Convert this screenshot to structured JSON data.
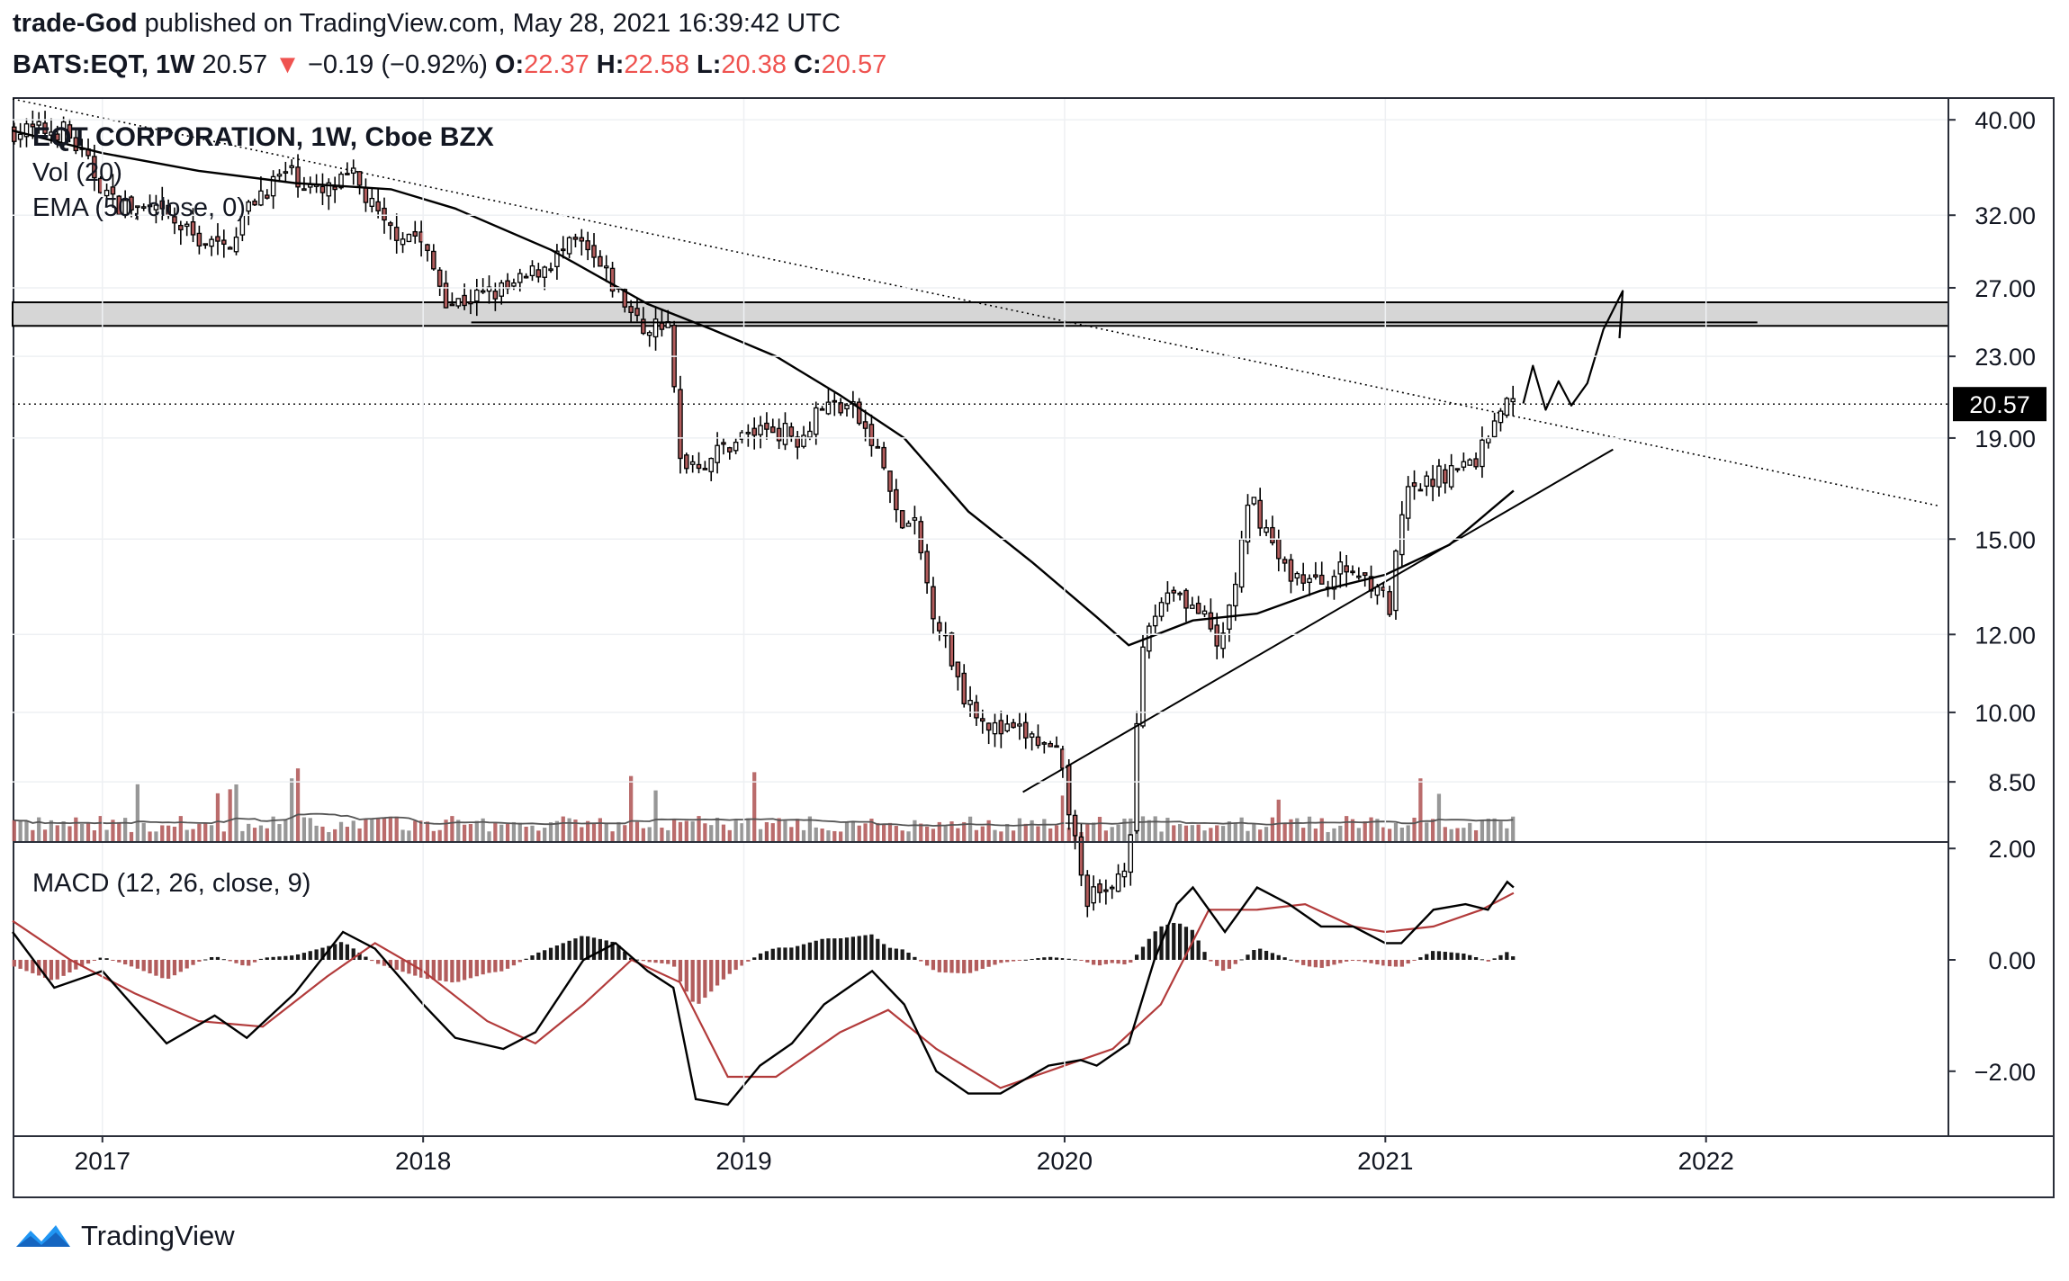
{
  "header": {
    "author": "trade-God",
    "published_text": "published on TradingView.com, May 28, 2021 16:39:42 UTC",
    "symbol": "BATS:EQT, 1W",
    "last": "20.57",
    "change_arrow": "▼",
    "change": "−0.19 (−0.92%)",
    "o_label": "O:",
    "o_value": "22.37",
    "h_label": "H:",
    "h_value": "22.58",
    "l_label": "L:",
    "l_value": "20.38",
    "c_label": "C:",
    "c_value": "20.57"
  },
  "legend": {
    "title": "EQT CORPORATION, 1W, Cboe BZX",
    "vol": "Vol (20)",
    "ema": "EMA (50, close, 0)",
    "macd": "MACD (12, 26, close, 9)"
  },
  "footer": {
    "brand": "TradingView",
    "logo_icon": "tradingview-logo-icon"
  },
  "colors": {
    "up": "#ffffff",
    "down": "#b25c5c",
    "macd_line": "#000000",
    "signal_line": "#b23b3b",
    "hist_pos": "#1a1a1a",
    "hist_neg": "#b25c5c",
    "price_tag_bg": "#000000",
    "header_down": "#ef5350"
  },
  "chart_data": [
    {
      "type": "candlestick",
      "title": "EQT CORPORATION, 1W, Cboe BZX",
      "y_scale": "log",
      "x_ticks": [
        "2017",
        "2018",
        "2019",
        "2020",
        "2021",
        "2022"
      ],
      "x_tick_dates": [
        2017.0,
        2018.0,
        2019.0,
        2020.0,
        2021.0,
        2022.0
      ],
      "x_range": [
        2016.72,
        2022.75
      ],
      "y_ticks": [
        "40.00",
        "32.00",
        "27.00",
        "23.00",
        "19.00",
        "15.00",
        "12.00",
        "10.00",
        "8.50"
      ],
      "y_tick_values": [
        40,
        32,
        27,
        23,
        19,
        15,
        12,
        10,
        8.5
      ],
      "y_range": [
        7.4,
        42
      ],
      "last_price_label": "20.57",
      "last_price": 20.57,
      "anchors": [
        [
          2016.72,
          39
        ],
        [
          2016.9,
          39
        ],
        [
          2017.05,
          33
        ],
        [
          2017.2,
          32
        ],
        [
          2017.3,
          30.5
        ],
        [
          2017.4,
          29.5
        ],
        [
          2017.5,
          33.5
        ],
        [
          2017.6,
          35.5
        ],
        [
          2017.7,
          33.5
        ],
        [
          2017.8,
          35
        ],
        [
          2017.9,
          31
        ],
        [
          2018.0,
          30.5
        ],
        [
          2018.1,
          26
        ],
        [
          2018.2,
          26.5
        ],
        [
          2018.3,
          27
        ],
        [
          2018.4,
          28.5
        ],
        [
          2018.5,
          30
        ],
        [
          2018.6,
          27.5
        ],
        [
          2018.7,
          24.5
        ],
        [
          2018.78,
          25
        ],
        [
          2018.82,
          18
        ],
        [
          2018.9,
          18
        ],
        [
          2019.0,
          19
        ],
        [
          2019.1,
          19.5
        ],
        [
          2019.2,
          19
        ],
        [
          2019.25,
          20.5
        ],
        [
          2019.35,
          20.5
        ],
        [
          2019.45,
          18
        ],
        [
          2019.5,
          15.5
        ],
        [
          2019.55,
          15.5
        ],
        [
          2019.6,
          13
        ],
        [
          2019.7,
          10.5
        ],
        [
          2019.8,
          9.6
        ],
        [
          2019.9,
          9.5
        ],
        [
          2020.0,
          9.0
        ],
        [
          2020.08,
          6.5
        ],
        [
          2020.15,
          6.5
        ],
        [
          2020.22,
          7.2
        ],
        [
          2020.27,
          12
        ],
        [
          2020.35,
          13.5
        ],
        [
          2020.45,
          12.5
        ],
        [
          2020.5,
          11.5
        ],
        [
          2020.55,
          13.5
        ],
        [
          2020.6,
          16.5
        ],
        [
          2020.7,
          14
        ],
        [
          2020.8,
          13.5
        ],
        [
          2020.9,
          14
        ],
        [
          2021.0,
          13.5
        ],
        [
          2021.03,
          12.5
        ],
        [
          2021.08,
          16.5
        ],
        [
          2021.2,
          17.5
        ],
        [
          2021.3,
          18
        ],
        [
          2021.38,
          20.5
        ],
        [
          2021.4,
          20.57
        ]
      ],
      "ema_anchors": [
        [
          2016.72,
          39
        ],
        [
          2017.0,
          37
        ],
        [
          2017.3,
          35.5
        ],
        [
          2017.6,
          34.5
        ],
        [
          2017.9,
          34
        ],
        [
          2018.1,
          32.5
        ],
        [
          2018.4,
          29.5
        ],
        [
          2018.7,
          26
        ],
        [
          2018.9,
          24.5
        ],
        [
          2019.1,
          23
        ],
        [
          2019.3,
          21
        ],
        [
          2019.5,
          19
        ],
        [
          2019.7,
          16
        ],
        [
          2019.9,
          14.2
        ],
        [
          2020.1,
          12.5
        ],
        [
          2020.2,
          11.7
        ],
        [
          2020.4,
          12.4
        ],
        [
          2020.6,
          12.6
        ],
        [
          2020.8,
          13.3
        ],
        [
          2021.0,
          13.8
        ],
        [
          2021.2,
          14.8
        ],
        [
          2021.4,
          16.8
        ]
      ],
      "resistance_zone": [
        24.7,
        26.1
      ],
      "trendlines": [
        {
          "style": "dotted",
          "points": [
            [
              2016.72,
              42
            ],
            [
              2022.73,
              16.2
            ]
          ]
        },
        {
          "style": "solid",
          "points": [
            [
              2019.87,
              8.3
            ],
            [
              2021.71,
              18.5
            ]
          ]
        },
        {
          "style": "solid",
          "points": [
            [
              2018.15,
              24.9
            ],
            [
              2022.16,
              24.9
            ]
          ]
        }
      ],
      "projection_path": [
        [
          2021.43,
          20.6
        ],
        [
          2021.46,
          22.5
        ],
        [
          2021.5,
          20.3
        ],
        [
          2021.54,
          21.7
        ],
        [
          2021.58,
          20.5
        ],
        [
          2021.63,
          21.6
        ],
        [
          2021.68,
          24.5
        ],
        [
          2021.74,
          26.8
        ],
        [
          2021.73,
          24.0
        ]
      ]
    },
    {
      "type": "bar",
      "title": "Vol (20)",
      "note": "weekly volume histogram with 20-period moving average"
    },
    {
      "type": "line",
      "title": "MACD (12, 26, close, 9)",
      "y_ticks": [
        "2.00",
        "0.00",
        "−2.00"
      ],
      "y_tick_values": [
        2,
        0,
        -2
      ],
      "y_range": [
        -3.15,
        2.1
      ],
      "macd_anchors": [
        [
          2016.72,
          0.5
        ],
        [
          2016.85,
          -0.5
        ],
        [
          2017.0,
          -0.2
        ],
        [
          2017.2,
          -1.5
        ],
        [
          2017.35,
          -1.0
        ],
        [
          2017.45,
          -1.4
        ],
        [
          2017.6,
          -0.6
        ],
        [
          2017.75,
          0.5
        ],
        [
          2017.85,
          0.2
        ],
        [
          2018.0,
          -0.8
        ],
        [
          2018.1,
          -1.4
        ],
        [
          2018.25,
          -1.6
        ],
        [
          2018.35,
          -1.3
        ],
        [
          2018.5,
          0.0
        ],
        [
          2018.6,
          0.3
        ],
        [
          2018.7,
          -0.2
        ],
        [
          2018.78,
          -0.5
        ],
        [
          2018.85,
          -2.5
        ],
        [
          2018.95,
          -2.6
        ],
        [
          2019.05,
          -1.9
        ],
        [
          2019.15,
          -1.5
        ],
        [
          2019.25,
          -0.8
        ],
        [
          2019.4,
          -0.2
        ],
        [
          2019.5,
          -0.8
        ],
        [
          2019.6,
          -2.0
        ],
        [
          2019.7,
          -2.4
        ],
        [
          2019.8,
          -2.4
        ],
        [
          2019.95,
          -1.9
        ],
        [
          2020.05,
          -1.8
        ],
        [
          2020.1,
          -1.9
        ],
        [
          2020.2,
          -1.5
        ],
        [
          2020.28,
          0.0
        ],
        [
          2020.35,
          1.0
        ],
        [
          2020.4,
          1.3
        ],
        [
          2020.5,
          0.5
        ],
        [
          2020.6,
          1.3
        ],
        [
          2020.7,
          1.0
        ],
        [
          2020.8,
          0.6
        ],
        [
          2020.9,
          0.6
        ],
        [
          2021.0,
          0.3
        ],
        [
          2021.05,
          0.3
        ],
        [
          2021.15,
          0.9
        ],
        [
          2021.25,
          1.0
        ],
        [
          2021.32,
          0.9
        ],
        [
          2021.38,
          1.4
        ],
        [
          2021.4,
          1.3
        ]
      ],
      "signal_anchors": [
        [
          2016.72,
          0.7
        ],
        [
          2016.9,
          0.0
        ],
        [
          2017.1,
          -0.6
        ],
        [
          2017.3,
          -1.1
        ],
        [
          2017.5,
          -1.2
        ],
        [
          2017.7,
          -0.3
        ],
        [
          2017.85,
          0.3
        ],
        [
          2018.0,
          -0.2
        ],
        [
          2018.2,
          -1.1
        ],
        [
          2018.35,
          -1.5
        ],
        [
          2018.5,
          -0.8
        ],
        [
          2018.65,
          0.0
        ],
        [
          2018.8,
          -0.4
        ],
        [
          2018.95,
          -2.1
        ],
        [
          2019.1,
          -2.1
        ],
        [
          2019.3,
          -1.3
        ],
        [
          2019.45,
          -0.9
        ],
        [
          2019.6,
          -1.6
        ],
        [
          2019.8,
          -2.3
        ],
        [
          2020.0,
          -1.9
        ],
        [
          2020.15,
          -1.6
        ],
        [
          2020.3,
          -0.8
        ],
        [
          2020.45,
          0.9
        ],
        [
          2020.6,
          0.9
        ],
        [
          2020.75,
          1.0
        ],
        [
          2020.9,
          0.6
        ],
        [
          2021.0,
          0.5
        ],
        [
          2021.15,
          0.6
        ],
        [
          2021.3,
          0.9
        ],
        [
          2021.4,
          1.2
        ]
      ]
    }
  ]
}
